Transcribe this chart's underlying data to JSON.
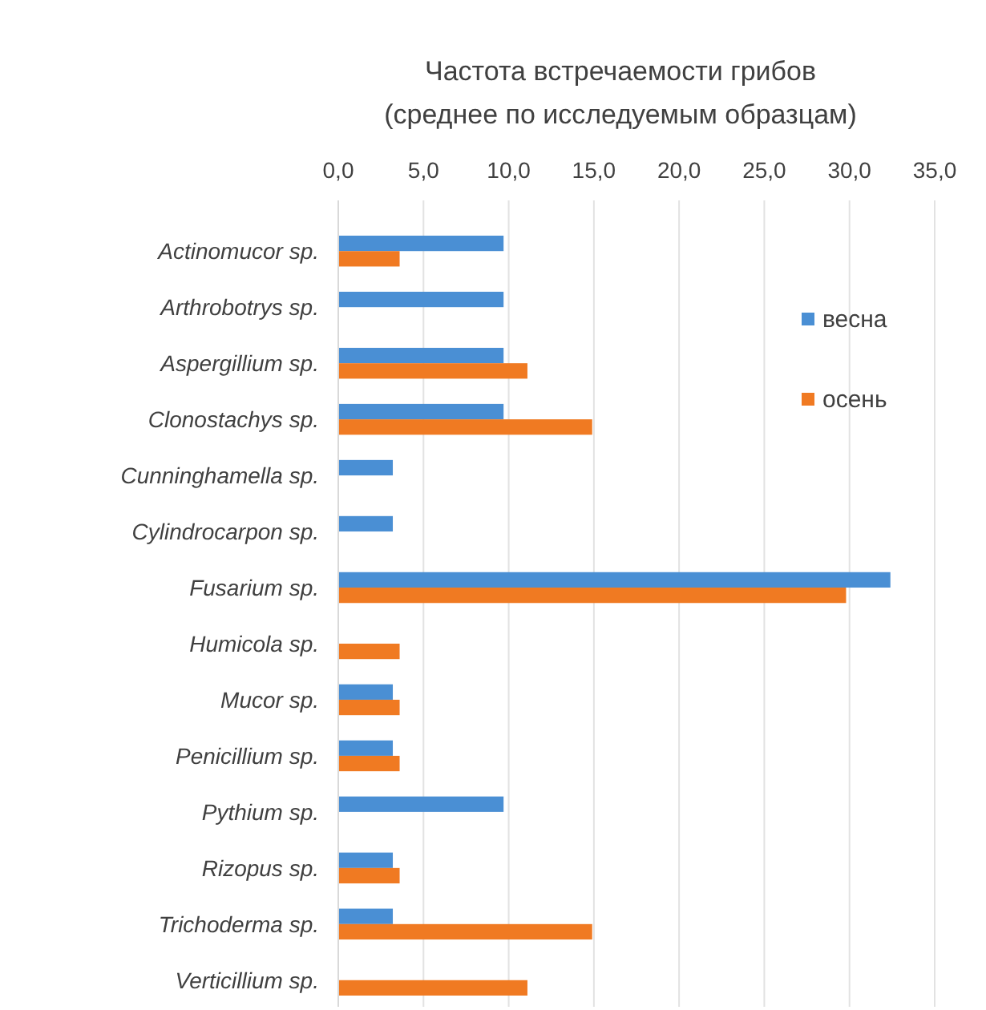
{
  "chart_data": {
    "type": "bar",
    "orientation": "horizontal",
    "title": "Частота встречаемости грибов\n(среднее по исследуемым образцам)",
    "categories": [
      "Actinomucor sp.",
      "Arthrobotrys sp.",
      "Aspergillium sp.",
      "Clonostachys sp.",
      "Cunninghamella sp.",
      "Cylindrocarpon sp.",
      "Fusarium sp.",
      "Humicola sp.",
      "Mucor sp.",
      "Penicillium sp.",
      "Pythium sp.",
      "Rizopus sp.",
      "Trichoderma sp.",
      "Verticillium sp."
    ],
    "series": [
      {
        "name": "весна",
        "color": "#4a8fd4",
        "values": [
          9.7,
          9.7,
          9.7,
          9.7,
          3.2,
          3.2,
          32.4,
          null,
          3.2,
          3.2,
          9.7,
          3.2,
          3.2,
          null
        ]
      },
      {
        "name": "осень",
        "color": "#f07a22",
        "values": [
          3.6,
          null,
          11.1,
          14.9,
          null,
          null,
          29.8,
          3.6,
          3.6,
          3.6,
          null,
          3.6,
          14.9,
          11.1
        ]
      }
    ],
    "xlim": [
      0,
      35
    ],
    "xticks": [
      {
        "value": 0,
        "label": "0,0"
      },
      {
        "value": 5,
        "label": "5,0"
      },
      {
        "value": 10,
        "label": "10,0"
      },
      {
        "value": 15,
        "label": "15,0"
      },
      {
        "value": 20,
        "label": "20,0"
      },
      {
        "value": 25,
        "label": "25,0"
      },
      {
        "value": 30,
        "label": "30,0"
      },
      {
        "value": 35,
        "label": "35,0"
      }
    ],
    "grid": "x",
    "legend": "right"
  }
}
